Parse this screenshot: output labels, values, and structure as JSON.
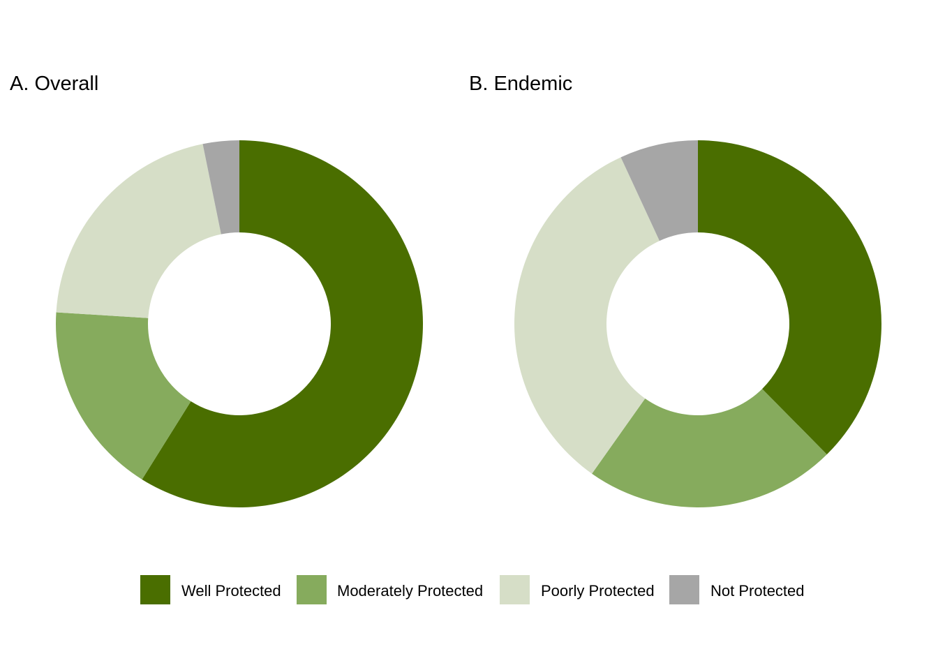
{
  "chart_data": [
    {
      "type": "pie",
      "title": "A. Overall",
      "categories": [
        "Well Protected",
        "Moderately Protected",
        "Poorly Protected",
        "Not Protected"
      ],
      "values": [
        58.9,
        17.1,
        20.8,
        3.2
      ],
      "donut": true,
      "start_angle": "12 o'clock",
      "direction": "clockwise"
    },
    {
      "type": "pie",
      "title": "B. Endemic",
      "categories": [
        "Well Protected",
        "Moderately Protected",
        "Poorly Protected",
        "Not Protected"
      ],
      "values": [
        37.6,
        22.2,
        33.3,
        6.9
      ],
      "donut": true,
      "start_angle": "12 o'clock",
      "direction": "clockwise"
    }
  ],
  "legend": {
    "placement": "bottom",
    "items": [
      {
        "label": "Well Protected",
        "color": "#4a6e00"
      },
      {
        "label": "Moderately Protected",
        "color": "#86ab5d"
      },
      {
        "label": "Poorly Protected",
        "color": "#d6dec7"
      },
      {
        "label": "Not Protected",
        "color": "#a6a6a6"
      }
    ]
  }
}
